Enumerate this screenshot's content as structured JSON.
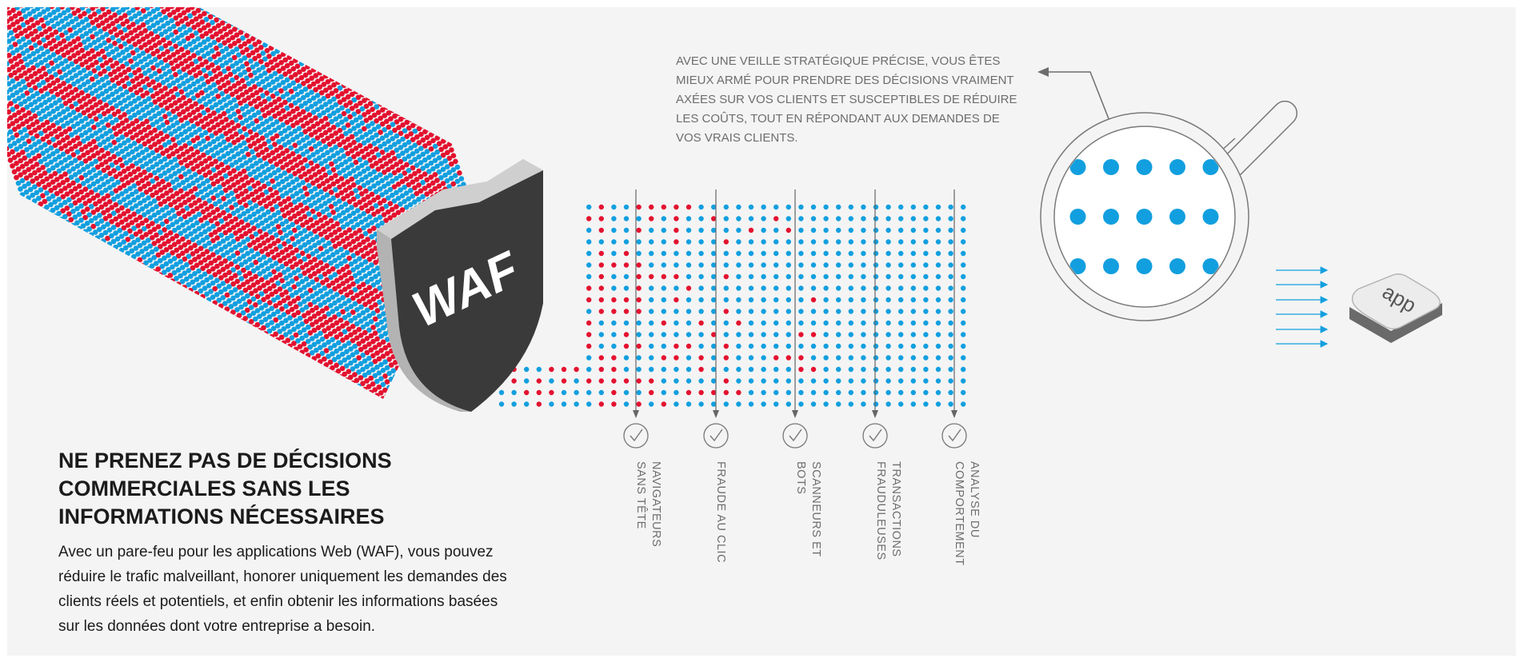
{
  "headline": {
    "lines": [
      "NE PRENEZ PAS DE DÉCISIONS",
      "COMMERCIALES SANS LES",
      "INFORMATIONS NÉCESSAIRES"
    ]
  },
  "body": {
    "lines": [
      "Avec un pare-feu pour les applications Web (WAF), vous pouvez",
      "réduire le trafic malveillant, honorer uniquement les demandes des",
      "clients réels et potentiels, et enfin obtenir les informations basées",
      "sur les données dont votre entreprise a besoin."
    ]
  },
  "callout": {
    "lines": [
      "AVEC UNE VEILLE STRATÉGIQUE PRÉCISE, VOUS ÊTES",
      "MIEUX ARMÉ POUR PRENDRE DES DÉCISIONS VRAIMENT",
      "AXÉES SUR VOS CLIENTS ET SUSCEPTIBLES DE RÉDUIRE",
      "LES COÛTS, TOUT EN RÉPONDANT AUX DEMANDES DE",
      "VOS VRAIS CLIENTS."
    ]
  },
  "shield": {
    "label": "WAF"
  },
  "app_box": {
    "label": "app"
  },
  "filters": [
    {
      "lines": [
        "NAVIGATEURS",
        "SANS TÊTE"
      ],
      "icon": "check-circle-icon"
    },
    {
      "lines": [
        "FRAUDE AU CLIC"
      ],
      "icon": "check-circle-icon"
    },
    {
      "lines": [
        "SCANNEURS ET",
        "BOTS"
      ],
      "icon": "check-circle-icon"
    },
    {
      "lines": [
        "TRANSACTIONS",
        "FRAUDULEUSES"
      ],
      "icon": "check-circle-icon"
    },
    {
      "lines": [
        "ANALYSE DU",
        "COMPORTEMENT"
      ],
      "icon": "check-circle-icon"
    }
  ],
  "colors": {
    "malicious": "#e3122f",
    "legitimate": "#129fdf",
    "shield": "#3a3a3a",
    "shield_edge": "#c9c9c9",
    "text_dark": "#1b1b1b",
    "text_gray": "#6d6d6d",
    "background": "#f4f4f4"
  }
}
